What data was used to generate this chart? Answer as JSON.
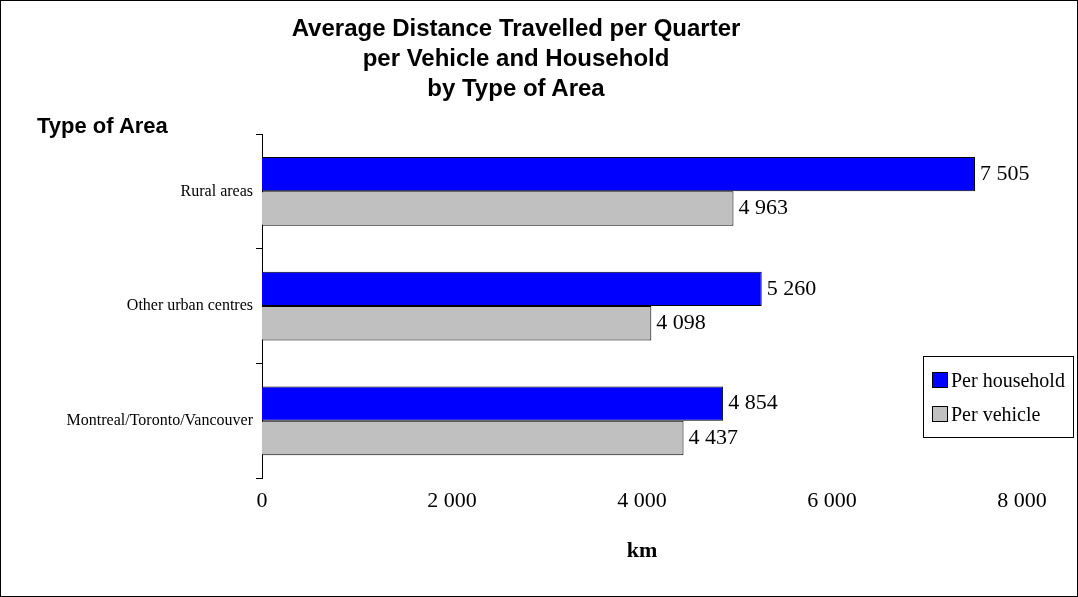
{
  "chart_data": {
    "type": "bar",
    "orientation": "horizontal",
    "title": "Average Distance Travelled per Quarter\nper Vehicle and Household\nby Type of Area",
    "ylabel": "Type of Area",
    "xlabel": "km",
    "categories": [
      "Rural areas",
      "Other urban centres",
      "Montreal/Toronto/Vancouver"
    ],
    "series": [
      {
        "name": "Per household",
        "color": "#0000ff",
        "values": [
          7505,
          5260,
          4854
        ],
        "value_labels": [
          "7 505",
          "5 260",
          "4 854"
        ]
      },
      {
        "name": "Per vehicle",
        "color": "#c0c0c0",
        "values": [
          4963,
          4098,
          4437
        ],
        "value_labels": [
          "4 963",
          "4 098",
          "4 437"
        ]
      }
    ],
    "xlim": [
      0,
      8000
    ],
    "xticks": [
      0,
      {
        "value": 2000,
        "label": "2 000"
      },
      {
        "value": 4000,
        "label": "4 000"
      },
      {
        "value": 6000,
        "label": "6 000"
      },
      {
        "value": 8000,
        "label": "8 000"
      }
    ],
    "grid": false,
    "legend": "bottom right"
  }
}
